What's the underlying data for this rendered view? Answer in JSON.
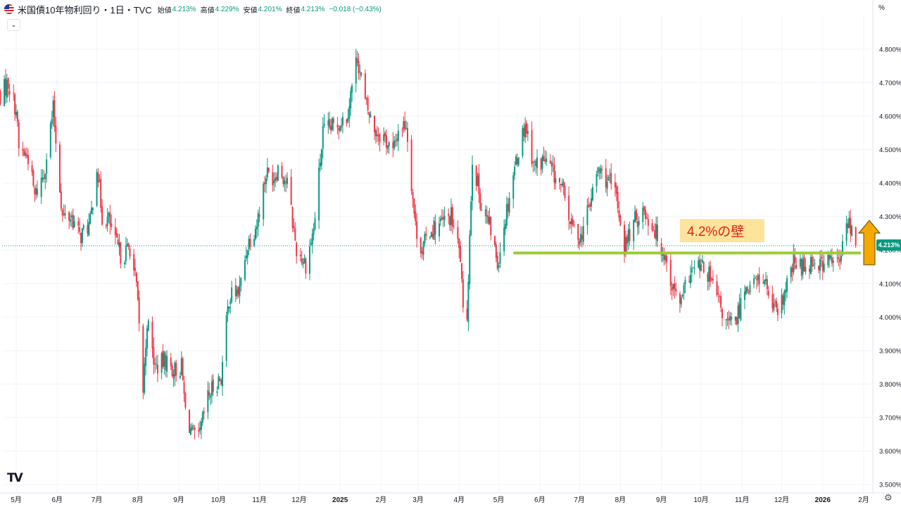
{
  "header": {
    "symbol": "米国債10年物利回り・1日・TVC",
    "open_label": "始値",
    "open_value": "4.213%",
    "high_label": "高値",
    "high_value": "4.229%",
    "low_label": "安値",
    "low_value": "4.201%",
    "close_label": "終値",
    "close_value": "4.213%",
    "change": "−0.018 (−0.43%)"
  },
  "toolbar": {
    "collapse_icon": "⌄",
    "unit": "%",
    "settings_icon": "⚙"
  },
  "logo": "TV",
  "annotation": {
    "text": "4.2%の壁"
  },
  "current_price": "4.213%",
  "colors": {
    "up": "#089981",
    "down": "#f23645",
    "support_line": "#9acd32",
    "arrow": "#f5a800",
    "annotation_bg": "#fde49a",
    "annotation_text": "#e0201b"
  },
  "chart_data": {
    "type": "candlestick",
    "title": "米国債10年物利回り・1日・TVC",
    "ylim": [
      3.5,
      4.85
    ],
    "y_ticks": [
      "4.800%",
      "4.700%",
      "4.600%",
      "4.500%",
      "4.400%",
      "4.300%",
      "4.200%",
      "4.100%",
      "4.000%",
      "3.900%",
      "3.800%",
      "3.700%",
      "3.600%",
      "3.500%"
    ],
    "x_ticks": [
      {
        "label": "5月",
        "date": "2024-05-01"
      },
      {
        "label": "6月",
        "date": "2024-06-01"
      },
      {
        "label": "7月",
        "date": "2024-07-01"
      },
      {
        "label": "8月",
        "date": "2024-08-01"
      },
      {
        "label": "9月",
        "date": "2024-09-01"
      },
      {
        "label": "10月",
        "date": "2024-10-01"
      },
      {
        "label": "11月",
        "date": "2024-11-01"
      },
      {
        "label": "12月",
        "date": "2024-12-01"
      },
      {
        "label": "2025",
        "date": "2025-01-01",
        "bold": true
      },
      {
        "label": "2月",
        "date": "2025-02-01"
      },
      {
        "label": "3月",
        "date": "2025-03-01"
      },
      {
        "label": "4月",
        "date": "2025-04-01"
      },
      {
        "label": "5月",
        "date": "2025-05-01"
      },
      {
        "label": "6月",
        "date": "2025-06-01"
      },
      {
        "label": "7月",
        "date": "2025-07-01"
      },
      {
        "label": "8月",
        "date": "2025-08-01"
      },
      {
        "label": "9月",
        "date": "2025-09-01"
      },
      {
        "label": "10月",
        "date": "2025-10-01"
      },
      {
        "label": "11月",
        "date": "2025-11-01"
      },
      {
        "label": "12月",
        "date": "2025-12-01"
      },
      {
        "label": "2026",
        "date": "2026-01-01",
        "bold": true
      },
      {
        "label": "2月",
        "date": "2026-02-01"
      }
    ],
    "x_range": [
      "2024-04-16",
      "2026-02-07"
    ],
    "close_path": [
      [
        "2024-04-17",
        4.65
      ],
      [
        "2024-04-25",
        4.7
      ],
      [
        "2024-05-01",
        4.62
      ],
      [
        "2024-05-03",
        4.5
      ],
      [
        "2024-05-10",
        4.48
      ],
      [
        "2024-05-15",
        4.36
      ],
      [
        "2024-05-22",
        4.43
      ],
      [
        "2024-05-29",
        4.62
      ],
      [
        "2024-06-05",
        4.3
      ],
      [
        "2024-06-12",
        4.3
      ],
      [
        "2024-06-18",
        4.24
      ],
      [
        "2024-06-26",
        4.28
      ],
      [
        "2024-07-01",
        4.46
      ],
      [
        "2024-07-05",
        4.3
      ],
      [
        "2024-07-10",
        4.29
      ],
      [
        "2024-07-15",
        4.22
      ],
      [
        "2024-07-20",
        4.18
      ],
      [
        "2024-07-26",
        4.21
      ],
      [
        "2024-07-31",
        4.09
      ],
      [
        "2024-08-05",
        3.78
      ],
      [
        "2024-08-08",
        3.99
      ],
      [
        "2024-08-14",
        3.85
      ],
      [
        "2024-08-22",
        3.87
      ],
      [
        "2024-08-28",
        3.84
      ],
      [
        "2024-09-03",
        3.85
      ],
      [
        "2024-09-06",
        3.72
      ],
      [
        "2024-09-11",
        3.65
      ],
      [
        "2024-09-16",
        3.63
      ],
      [
        "2024-09-22",
        3.75
      ],
      [
        "2024-09-28",
        3.8
      ],
      [
        "2024-10-03",
        3.82
      ],
      [
        "2024-10-09",
        4.06
      ],
      [
        "2024-10-17",
        4.08
      ],
      [
        "2024-10-23",
        4.22
      ],
      [
        "2024-10-30",
        4.28
      ],
      [
        "2024-11-06",
        4.43
      ],
      [
        "2024-11-12",
        4.42
      ],
      [
        "2024-11-15",
        4.45
      ],
      [
        "2024-11-22",
        4.4
      ],
      [
        "2024-11-29",
        4.2
      ],
      [
        "2024-12-06",
        4.16
      ],
      [
        "2024-12-12",
        4.26
      ],
      [
        "2024-12-19",
        4.55
      ],
      [
        "2024-12-27",
        4.57
      ],
      [
        "2025-01-06",
        4.6
      ],
      [
        "2025-01-14",
        4.78
      ],
      [
        "2025-01-20",
        4.64
      ],
      [
        "2025-01-27",
        4.56
      ],
      [
        "2025-02-03",
        4.54
      ],
      [
        "2025-02-10",
        4.49
      ],
      [
        "2025-02-14",
        4.56
      ],
      [
        "2025-02-20",
        4.58
      ],
      [
        "2025-02-27",
        4.27
      ],
      [
        "2025-03-04",
        4.2
      ],
      [
        "2025-03-10",
        4.26
      ],
      [
        "2025-03-19",
        4.28
      ],
      [
        "2025-03-26",
        4.3
      ],
      [
        "2025-04-02",
        4.18
      ],
      [
        "2025-04-04",
        4.0
      ],
      [
        "2025-04-07",
        4.01
      ],
      [
        "2025-04-11",
        4.48
      ],
      [
        "2025-04-18",
        4.33
      ],
      [
        "2025-04-25",
        4.26
      ],
      [
        "2025-04-30",
        4.16
      ],
      [
        "2025-05-06",
        4.3
      ],
      [
        "2025-05-13",
        4.45
      ],
      [
        "2025-05-21",
        4.58
      ],
      [
        "2025-05-28",
        4.45
      ],
      [
        "2025-06-04",
        4.47
      ],
      [
        "2025-06-11",
        4.43
      ],
      [
        "2025-06-18",
        4.38
      ],
      [
        "2025-06-25",
        4.27
      ],
      [
        "2025-07-02",
        4.24
      ],
      [
        "2025-07-09",
        4.34
      ],
      [
        "2025-07-15",
        4.44
      ],
      [
        "2025-07-22",
        4.41
      ],
      [
        "2025-07-29",
        4.36
      ],
      [
        "2025-08-04",
        4.21
      ],
      [
        "2025-08-11",
        4.28
      ],
      [
        "2025-08-18",
        4.32
      ],
      [
        "2025-08-26",
        4.27
      ],
      [
        "2025-09-04",
        4.18
      ],
      [
        "2025-09-10",
        4.08
      ],
      [
        "2025-09-16",
        4.04
      ],
      [
        "2025-09-22",
        4.13
      ],
      [
        "2025-09-30",
        4.15
      ],
      [
        "2025-10-06",
        4.13
      ],
      [
        "2025-10-13",
        4.06
      ],
      [
        "2025-10-20",
        3.98
      ],
      [
        "2025-10-27",
        3.98
      ],
      [
        "2025-11-03",
        4.09
      ],
      [
        "2025-11-10",
        4.1
      ],
      [
        "2025-11-17",
        4.12
      ],
      [
        "2025-11-24",
        4.03
      ],
      [
        "2025-11-28",
        4.0
      ],
      [
        "2025-12-04",
        4.08
      ],
      [
        "2025-12-10",
        4.16
      ],
      [
        "2025-12-17",
        4.15
      ],
      [
        "2025-12-24",
        4.17
      ],
      [
        "2025-12-31",
        4.16
      ],
      [
        "2026-01-08",
        4.17
      ],
      [
        "2026-01-14",
        4.16
      ],
      [
        "2026-01-17",
        4.24
      ],
      [
        "2026-01-20",
        4.29
      ],
      [
        "2026-01-26",
        4.213
      ]
    ],
    "last_close": 4.213,
    "support_line": {
      "value": 4.2,
      "from": "2025-05-12",
      "to": "2026-01-30"
    }
  }
}
